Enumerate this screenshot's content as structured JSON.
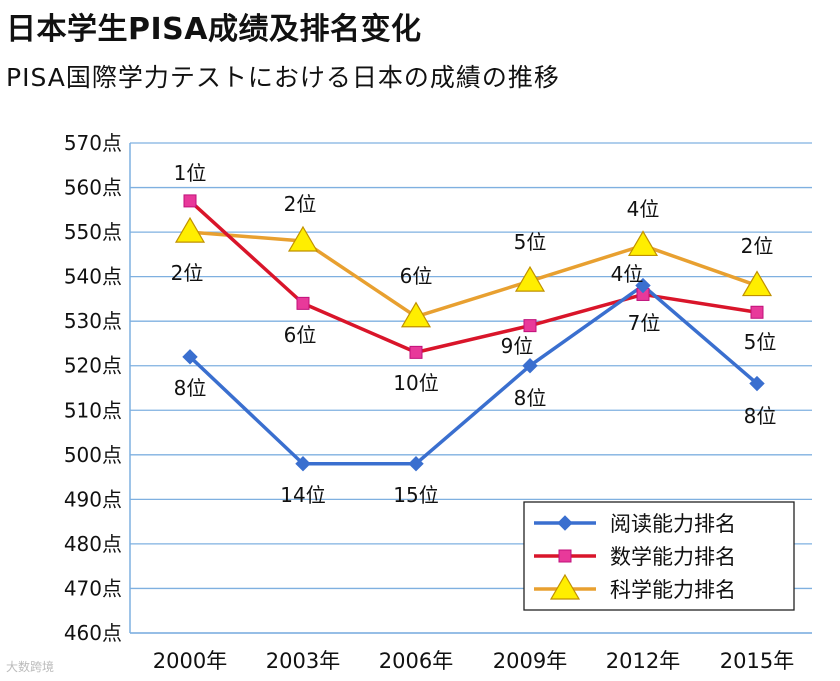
{
  "title": "日本学生PISA成绩及排名变化",
  "subtitle": "PISA国際学力テストにおける日本の成績の推移",
  "watermark": "大数跨境",
  "chart_data": {
    "type": "line",
    "categories": [
      "2000年",
      "2003年",
      "2006年",
      "2009年",
      "2012年",
      "2015年"
    ],
    "ylim": [
      460,
      570
    ],
    "yticks": [
      460,
      470,
      480,
      490,
      500,
      510,
      520,
      530,
      540,
      550,
      560,
      570
    ],
    "y_unit": "点",
    "grid": true,
    "legend_position": "bottom-right",
    "series": [
      {
        "name": "阅读能力排名",
        "color": "#3a6fcf",
        "marker": "diamond",
        "values": [
          522,
          498,
          498,
          520,
          538,
          516
        ],
        "rank_labels": [
          "8位",
          "14位",
          "15位",
          "8位",
          "4位",
          "8位"
        ]
      },
      {
        "name": "数学能力排名",
        "color": "#d9152a",
        "marker": "square",
        "marker_color": "#e8399a",
        "values": [
          557,
          534,
          523,
          529,
          536,
          532
        ],
        "rank_labels": [
          "1位",
          "6位",
          "10位",
          "9位",
          "7位",
          "5位"
        ]
      },
      {
        "name": "科学能力排名",
        "color": "#e8a030",
        "marker": "triangle",
        "marker_color": "#ffee00",
        "values": [
          550,
          548,
          531,
          539,
          547,
          538
        ],
        "rank_labels": [
          "2位",
          "2位",
          "6位",
          "5位",
          "4位",
          "2位"
        ]
      }
    ]
  }
}
